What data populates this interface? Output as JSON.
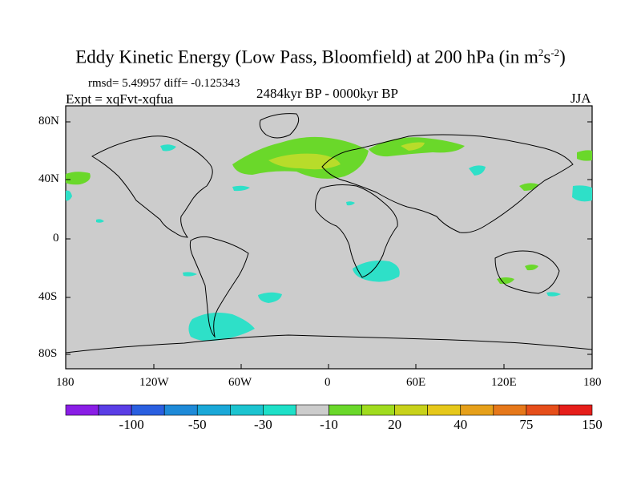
{
  "title": {
    "text": "Eddy Kinetic Energy (Low Pass, Bloomfield) at 200 hPa (in m",
    "sup1": "2",
    "mid": "s",
    "sup2": "-2",
    "end": ")"
  },
  "stats": "rmsd= 5.49957 diff= -0.125343",
  "experiment": "Expt = xqFvt-xqfua",
  "period": "2484kyr BP - 0000kyr BP",
  "season": "JJA",
  "lat_ticks": [
    "80N",
    "40N",
    "0",
    "40S",
    "80S"
  ],
  "lon_ticks": [
    "180",
    "120W",
    "60W",
    "0",
    "60E",
    "120E",
    "180"
  ],
  "colorbar": {
    "labels": [
      "-100",
      "-50",
      "-30",
      "-10",
      "20",
      "40",
      "75",
      "150"
    ],
    "colors": [
      "#8a1ee6",
      "#5a3ee6",
      "#2a5fe0",
      "#1e8ad8",
      "#1aa8d8",
      "#1cc4d0",
      "#1ee0c8",
      "#cccccc",
      "#6ad82a",
      "#a0dc1e",
      "#c8d21a",
      "#e6c81a",
      "#e6a01a",
      "#e6781a",
      "#e64e1a",
      "#e61e1a"
    ]
  },
  "colors": {
    "land_bg": "#cccccc",
    "green_light": "#6ad82a",
    "green_yellow": "#b8dc2a",
    "teal": "#2ee0c8"
  }
}
